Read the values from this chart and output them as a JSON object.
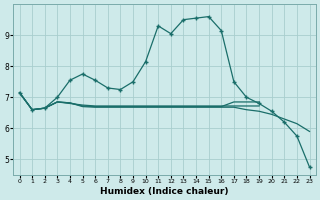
{
  "xlabel": "Humidex (Indice chaleur)",
  "background_color": "#ceeaea",
  "grid_color": "#a8cece",
  "line_color": "#1a6e6a",
  "x_values": [
    0,
    1,
    2,
    3,
    4,
    5,
    6,
    7,
    8,
    9,
    10,
    11,
    12,
    13,
    14,
    15,
    16,
    17,
    18,
    19,
    20,
    21,
    22,
    23
  ],
  "series": [
    [
      7.15,
      6.6,
      6.65,
      7.0,
      7.55,
      7.75,
      7.55,
      7.3,
      7.25,
      7.5,
      8.15,
      9.3,
      9.05,
      9.5,
      9.55,
      9.6,
      9.15,
      7.5,
      7.0,
      6.8,
      6.55,
      6.2,
      5.75,
      4.75
    ],
    [
      7.15,
      6.6,
      6.65,
      6.85,
      6.8,
      6.75,
      6.72,
      6.72,
      6.72,
      6.72,
      6.72,
      6.72,
      6.72,
      6.72,
      6.72,
      6.72,
      6.72,
      6.72,
      6.72,
      6.72,
      6.72,
      6.72,
      6.72,
      6.72
    ],
    [
      7.15,
      6.6,
      6.65,
      6.85,
      6.82,
      6.72,
      6.7,
      6.7,
      6.7,
      6.7,
      6.7,
      6.7,
      6.7,
      6.7,
      6.7,
      6.7,
      6.7,
      6.85,
      6.85,
      6.85,
      6.85,
      6.85,
      6.85,
      6.85
    ],
    [
      7.15,
      6.6,
      6.65,
      6.85,
      6.82,
      6.7,
      6.68,
      6.68,
      6.68,
      6.68,
      6.68,
      6.68,
      6.68,
      6.68,
      6.68,
      6.68,
      6.68,
      6.68,
      6.6,
      6.55,
      6.45,
      6.3,
      6.15,
      5.9
    ]
  ],
  "series2_with_markers": [
    true,
    false,
    false,
    false
  ],
  "ylim": [
    4.5,
    10.0
  ],
  "xlim": [
    -0.5,
    23.5
  ],
  "yticks": [
    5,
    6,
    7,
    8,
    9
  ],
  "xticks": [
    0,
    1,
    2,
    3,
    4,
    5,
    6,
    7,
    8,
    9,
    10,
    11,
    12,
    13,
    14,
    15,
    16,
    17,
    18,
    19,
    20,
    21,
    22,
    23
  ]
}
